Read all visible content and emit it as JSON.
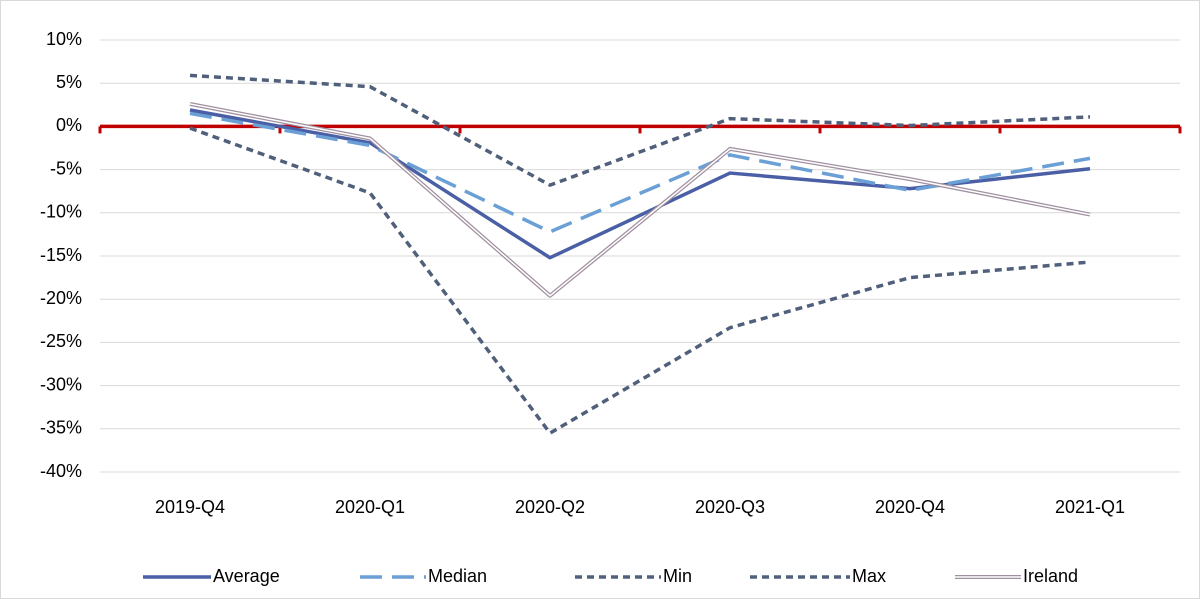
{
  "chart_data": {
    "type": "line",
    "categories": [
      "2019-Q4",
      "2020-Q1",
      "2020-Q2",
      "2020-Q3",
      "2020-Q4",
      "2021-Q1"
    ],
    "series": [
      {
        "name": "Average",
        "color": "#4a5fa5",
        "line_style": "solid",
        "values": [
          1.9,
          -1.9,
          -15.2,
          -5.4,
          -7.2,
          -4.9
        ]
      },
      {
        "name": "Median",
        "color": "#6aa0d6",
        "line_style": "long-dash",
        "values": [
          1.5,
          -2.2,
          -12.2,
          -3.3,
          -7.4,
          -3.7
        ]
      },
      {
        "name": "Min",
        "color": "#50607a",
        "line_style": "dash",
        "values": [
          -0.2,
          -7.7,
          -35.5,
          -23.3,
          -17.5,
          -15.7
        ]
      },
      {
        "name": "Max",
        "color": "#50607a",
        "line_style": "dash",
        "values": [
          5.9,
          4.6,
          -6.8,
          0.9,
          0.1,
          1.1
        ]
      },
      {
        "name": "Ireland",
        "color": "#a08fa0",
        "line_style": "double",
        "values": [
          2.6,
          -1.4,
          -19.6,
          -2.6,
          -6.1,
          -10.2
        ]
      }
    ],
    "ylim": [
      -40,
      10
    ],
    "yticks": [
      {
        "value": -40,
        "label": "-40%"
      },
      {
        "value": -35,
        "label": "-35%"
      },
      {
        "value": -30,
        "label": "-30%"
      },
      {
        "value": -25,
        "label": "-25%"
      },
      {
        "value": -20,
        "label": "-20%"
      },
      {
        "value": -15,
        "label": "-15%"
      },
      {
        "value": -10,
        "label": "-10%"
      },
      {
        "value": -5,
        "label": "-5%"
      },
      {
        "value": 0,
        "label": "0%"
      },
      {
        "value": 5,
        "label": "5%"
      },
      {
        "value": 10,
        "label": "10%"
      }
    ],
    "grid": true,
    "zero_line_color": "#c00000",
    "legend": "bottom"
  }
}
